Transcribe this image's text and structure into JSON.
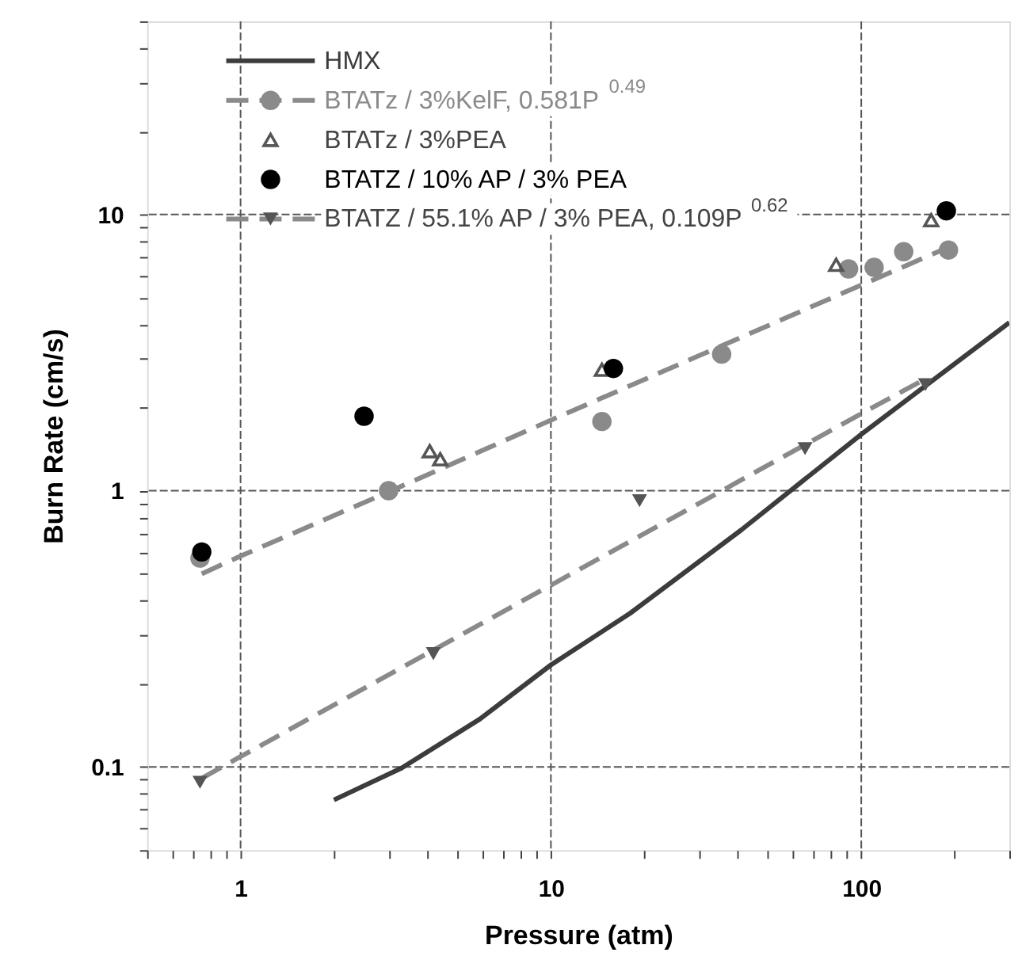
{
  "chart_data": {
    "type": "scatter",
    "xlabel": "Pressure (atm)",
    "ylabel": "Burn Rate (cm/s)",
    "log": "xy",
    "grid": true,
    "legend": "top left",
    "xlim": [
      0.5,
      300
    ],
    "ylim": [
      0.05,
      50
    ],
    "xticks": [
      {
        "value": 0.5,
        "label": null
      },
      {
        "value": 0.6,
        "label": null
      },
      {
        "value": 0.7,
        "label": null
      },
      {
        "value": 0.8,
        "label": null
      },
      {
        "value": 0.9,
        "label": null
      },
      1,
      {
        "value": 2,
        "label": null
      },
      {
        "value": 3,
        "label": null
      },
      {
        "value": 4,
        "label": null
      },
      {
        "value": 5,
        "label": null
      },
      {
        "value": 6,
        "label": null
      },
      {
        "value": 7,
        "label": null
      },
      {
        "value": 8,
        "label": null
      },
      {
        "value": 9,
        "label": null
      },
      10,
      {
        "value": 20,
        "label": null
      },
      {
        "value": 30,
        "label": null
      },
      {
        "value": 40,
        "label": null
      },
      {
        "value": 50,
        "label": null
      },
      {
        "value": 60,
        "label": null
      },
      {
        "value": 70,
        "label": null
      },
      {
        "value": 80,
        "label": null
      },
      {
        "value": 90,
        "label": null
      },
      100,
      {
        "value": 200,
        "label": null
      },
      {
        "value": 300,
        "label": null
      }
    ],
    "yticks": [
      {
        "value": 0.05,
        "label": null
      },
      {
        "value": 0.06,
        "label": null
      },
      {
        "value": 0.07,
        "label": null
      },
      {
        "value": 0.08,
        "label": null
      },
      {
        "value": 0.09,
        "label": null
      },
      0.1,
      {
        "value": 0.2,
        "label": null
      },
      {
        "value": 0.3,
        "label": null
      },
      {
        "value": 0.4,
        "label": null
      },
      {
        "value": 0.5,
        "label": null
      },
      {
        "value": 0.6,
        "label": null
      },
      {
        "value": 0.7,
        "label": null
      },
      {
        "value": 0.8,
        "label": null
      },
      {
        "value": 0.9,
        "label": null
      },
      1,
      {
        "value": 2,
        "label": null
      },
      {
        "value": 3,
        "label": null
      },
      {
        "value": 4,
        "label": null
      },
      {
        "value": 5,
        "label": null
      },
      {
        "value": 6,
        "label": null
      },
      {
        "value": 7,
        "label": null
      },
      {
        "value": 8,
        "label": null
      },
      {
        "value": 9,
        "label": null
      },
      10,
      {
        "value": 20,
        "label": null
      },
      {
        "value": 30,
        "label": null
      },
      {
        "value": 40,
        "label": null
      },
      {
        "value": 50,
        "label": null
      }
    ],
    "series": [
      {
        "name": "HMX",
        "type": "line",
        "color": "#3c3c3c",
        "line_style": "solid",
        "x": [
          2,
          3.3,
          5.9,
          10,
          18,
          41,
          100,
          300
        ],
        "values": [
          0.076,
          0.099,
          0.149,
          0.234,
          0.36,
          0.72,
          1.6,
          4.06
        ]
      },
      {
        "name": "BTATz / 3%KelF, 0.581P$^{0.49}$",
        "color": "#8a8a8a",
        "marker": "circle",
        "x": [
          0.74,
          3,
          14.6,
          35.5,
          91,
          110,
          137,
          191
        ],
        "values": [
          0.57,
          1.0,
          1.78,
          3.12,
          6.35,
          6.43,
          7.33,
          7.43
        ]
      },
      {
        "type": "line",
        "color": "#8a8a8a",
        "line_style": "dashed",
        "x": [
          0.75,
          1,
          3,
          10,
          30,
          100,
          190
        ],
        "values": [
          0.5,
          0.58,
          0.99,
          1.8,
          3.08,
          5.55,
          7.59
        ]
      },
      {
        "name": "BTATz / 3%PEA",
        "color": "#555555",
        "marker": "triangle",
        "x": [
          4.07,
          4.4,
          14.6,
          83,
          168
        ],
        "values": [
          1.39,
          1.3,
          2.74,
          6.57,
          9.53
        ]
      },
      {
        "name": "BTATZ / 10% AP / 3% PEA",
        "color": "#000000",
        "marker": "circle",
        "x": [
          0.75,
          2.5,
          15.9,
          188
        ],
        "values": [
          0.6,
          1.86,
          2.77,
          10.3
        ]
      },
      {
        "name": "BTATZ / 55.1% AP / 3% PEA, 0.109P$^{0.62}$",
        "color": "#555555",
        "marker": "triangle-down",
        "x": [
          0.74,
          4.18,
          19.3,
          65.9,
          161
        ],
        "values": [
          0.088,
          0.257,
          0.92,
          1.42,
          2.42
        ]
      },
      {
        "type": "line",
        "color": "#8a8a8a",
        "line_style": "dashed",
        "x": [
          0.75,
          1,
          10,
          100,
          165
        ],
        "values": [
          0.091,
          0.109,
          0.455,
          1.9,
          2.58
        ]
      }
    ]
  }
}
